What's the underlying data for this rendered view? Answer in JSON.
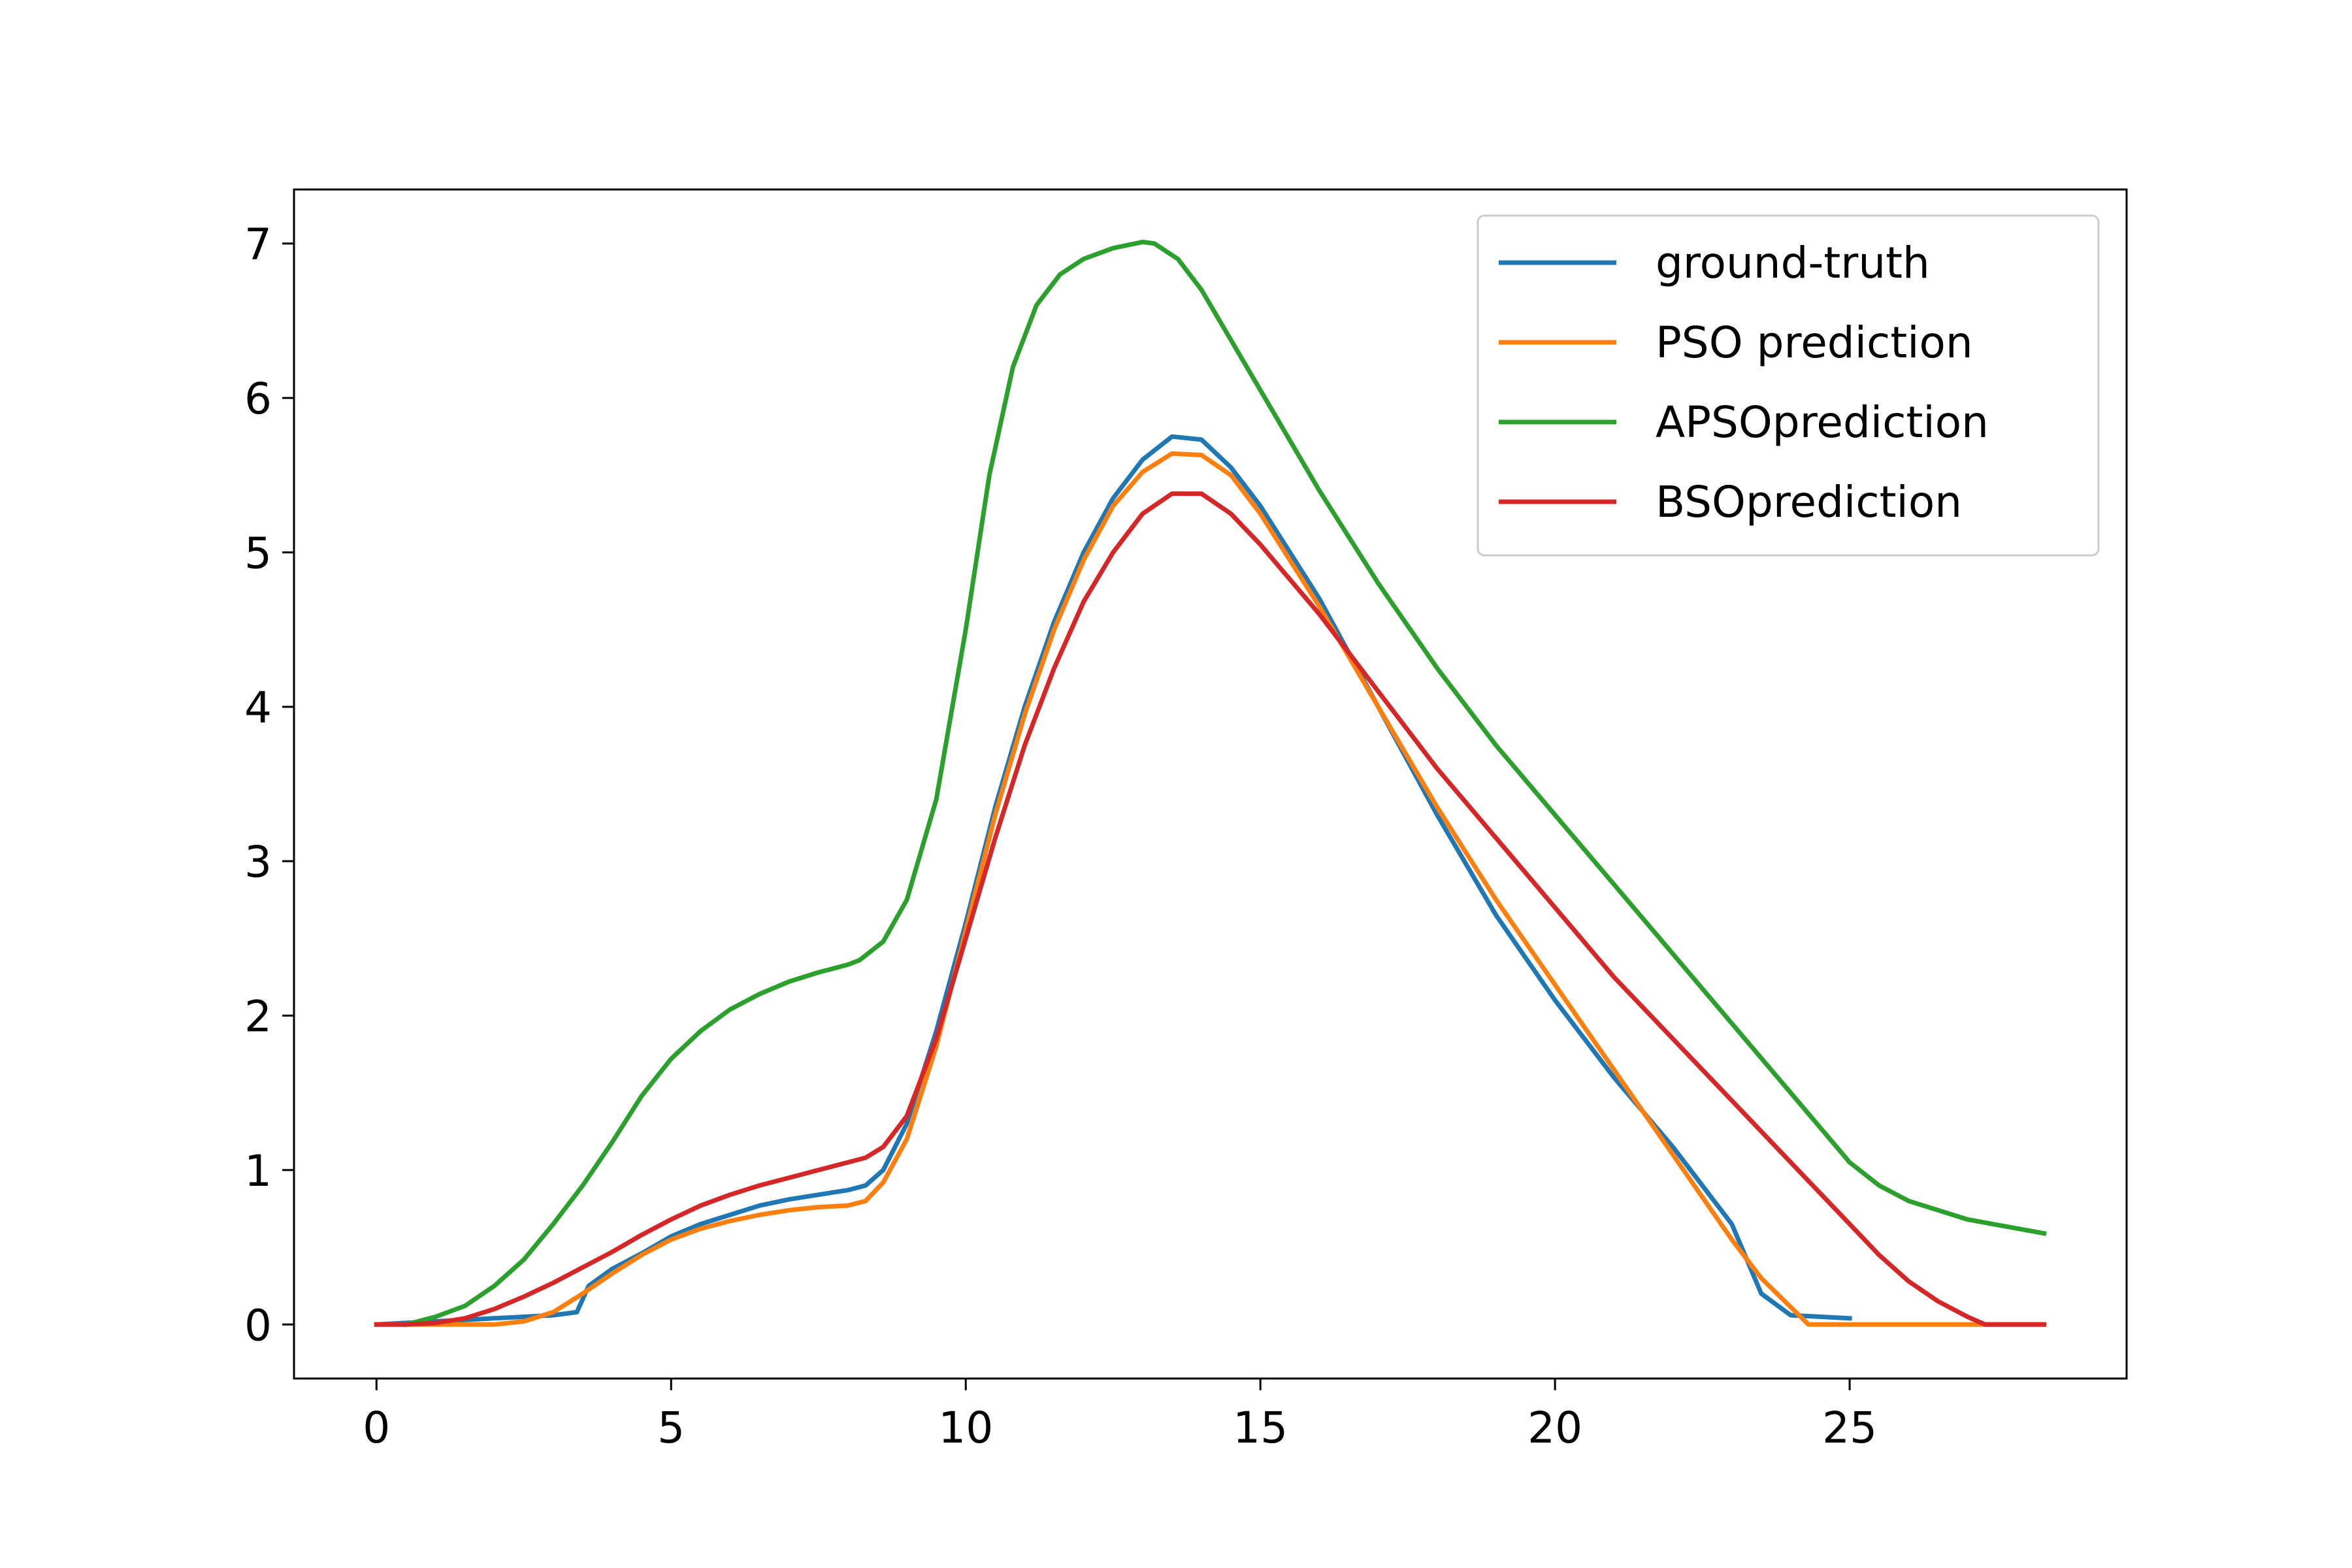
{
  "chart_data": {
    "type": "line",
    "title": "",
    "xlabel": "",
    "ylabel": "",
    "xlim": [
      -1.4,
      29.7
    ],
    "ylim": [
      -0.35,
      7.35
    ],
    "xticks": [
      0,
      5,
      10,
      15,
      20,
      25
    ],
    "yticks": [
      0,
      1,
      2,
      3,
      4,
      5,
      6,
      7
    ],
    "grid": false,
    "legend_position": "top-right",
    "series": [
      {
        "name": "ground-truth",
        "color": "#1f77b4",
        "points": [
          [
            0,
            0
          ],
          [
            0.5,
            0.01
          ],
          [
            1,
            0.02
          ],
          [
            1.5,
            0.03
          ],
          [
            2,
            0.04
          ],
          [
            2.5,
            0.05
          ],
          [
            3,
            0.06
          ],
          [
            3.4,
            0.08
          ],
          [
            3.6,
            0.25
          ],
          [
            4,
            0.36
          ],
          [
            4.5,
            0.46
          ],
          [
            5,
            0.57
          ],
          [
            5.5,
            0.65
          ],
          [
            6,
            0.71
          ],
          [
            6.5,
            0.77
          ],
          [
            7,
            0.81
          ],
          [
            7.5,
            0.84
          ],
          [
            8,
            0.87
          ],
          [
            8.3,
            0.9
          ],
          [
            8.6,
            1.0
          ],
          [
            9,
            1.3
          ],
          [
            9.5,
            1.9
          ],
          [
            10,
            2.6
          ],
          [
            10.5,
            3.35
          ],
          [
            11,
            4.0
          ],
          [
            11.5,
            4.55
          ],
          [
            12,
            5.0
          ],
          [
            12.5,
            5.35
          ],
          [
            13,
            5.6
          ],
          [
            13.5,
            5.75
          ],
          [
            14,
            5.73
          ],
          [
            14.5,
            5.55
          ],
          [
            15,
            5.3
          ],
          [
            16,
            4.7
          ],
          [
            17,
            4.0
          ],
          [
            18,
            3.3
          ],
          [
            19,
            2.65
          ],
          [
            20,
            2.1
          ],
          [
            21,
            1.6
          ],
          [
            22,
            1.15
          ],
          [
            23,
            0.65
          ],
          [
            23.5,
            0.2
          ],
          [
            24,
            0.06
          ],
          [
            25,
            0.04
          ]
        ]
      },
      {
        "name": "PSO prediction",
        "color": "#ff7f0e",
        "points": [
          [
            0,
            0
          ],
          [
            1,
            0
          ],
          [
            2,
            0
          ],
          [
            2.5,
            0.02
          ],
          [
            3,
            0.08
          ],
          [
            3.5,
            0.2
          ],
          [
            4,
            0.33
          ],
          [
            4.5,
            0.45
          ],
          [
            5,
            0.55
          ],
          [
            5.5,
            0.62
          ],
          [
            6,
            0.67
          ],
          [
            6.5,
            0.71
          ],
          [
            7,
            0.74
          ],
          [
            7.5,
            0.76
          ],
          [
            8,
            0.77
          ],
          [
            8.3,
            0.8
          ],
          [
            8.6,
            0.92
          ],
          [
            9,
            1.2
          ],
          [
            9.5,
            1.8
          ],
          [
            10,
            2.55
          ],
          [
            10.5,
            3.3
          ],
          [
            11,
            3.95
          ],
          [
            11.5,
            4.5
          ],
          [
            12,
            4.95
          ],
          [
            12.5,
            5.3
          ],
          [
            13,
            5.52
          ],
          [
            13.5,
            5.64
          ],
          [
            14,
            5.63
          ],
          [
            14.5,
            5.5
          ],
          [
            15,
            5.25
          ],
          [
            16,
            4.65
          ],
          [
            17,
            4.0
          ],
          [
            18,
            3.35
          ],
          [
            19,
            2.75
          ],
          [
            20,
            2.2
          ],
          [
            21,
            1.65
          ],
          [
            22,
            1.1
          ],
          [
            23,
            0.55
          ],
          [
            23.5,
            0.3
          ],
          [
            24.3,
            0
          ],
          [
            25,
            0
          ],
          [
            26,
            0
          ],
          [
            27,
            0
          ],
          [
            28.3,
            0
          ]
        ]
      },
      {
        "name": "APSOprediction",
        "color": "#2ca02c",
        "points": [
          [
            0.5,
            0
          ],
          [
            1,
            0.05
          ],
          [
            1.5,
            0.12
          ],
          [
            2,
            0.25
          ],
          [
            2.5,
            0.42
          ],
          [
            3,
            0.65
          ],
          [
            3.5,
            0.9
          ],
          [
            4,
            1.18
          ],
          [
            4.5,
            1.48
          ],
          [
            5,
            1.72
          ],
          [
            5.5,
            1.9
          ],
          [
            6,
            2.04
          ],
          [
            6.5,
            2.14
          ],
          [
            7,
            2.22
          ],
          [
            7.5,
            2.28
          ],
          [
            8,
            2.33
          ],
          [
            8.2,
            2.36
          ],
          [
            8.6,
            2.48
          ],
          [
            9,
            2.75
          ],
          [
            9.5,
            3.4
          ],
          [
            10,
            4.5
          ],
          [
            10.4,
            5.5
          ],
          [
            10.8,
            6.2
          ],
          [
            11.2,
            6.6
          ],
          [
            11.6,
            6.8
          ],
          [
            12,
            6.9
          ],
          [
            12.5,
            6.97
          ],
          [
            13,
            7.01
          ],
          [
            13.2,
            7.0
          ],
          [
            13.6,
            6.9
          ],
          [
            14,
            6.7
          ],
          [
            15,
            6.05
          ],
          [
            16,
            5.4
          ],
          [
            17,
            4.8
          ],
          [
            18,
            4.25
          ],
          [
            19,
            3.75
          ],
          [
            20,
            3.3
          ],
          [
            21,
            2.85
          ],
          [
            22,
            2.4
          ],
          [
            23,
            1.95
          ],
          [
            24,
            1.5
          ],
          [
            25,
            1.05
          ],
          [
            25.5,
            0.9
          ],
          [
            26,
            0.8
          ],
          [
            27,
            0.68
          ],
          [
            28.3,
            0.59
          ]
        ]
      },
      {
        "name": "BSOprediction",
        "color": "#d62728",
        "points": [
          [
            0,
            0
          ],
          [
            0.5,
            0
          ],
          [
            1,
            0.01
          ],
          [
            1.5,
            0.04
          ],
          [
            2,
            0.1
          ],
          [
            2.5,
            0.18
          ],
          [
            3,
            0.27
          ],
          [
            3.5,
            0.37
          ],
          [
            4,
            0.47
          ],
          [
            4.5,
            0.58
          ],
          [
            5,
            0.68
          ],
          [
            5.5,
            0.77
          ],
          [
            6,
            0.84
          ],
          [
            6.5,
            0.9
          ],
          [
            7,
            0.95
          ],
          [
            7.5,
            1.0
          ],
          [
            8,
            1.05
          ],
          [
            8.3,
            1.08
          ],
          [
            8.6,
            1.15
          ],
          [
            9,
            1.35
          ],
          [
            9.5,
            1.85
          ],
          [
            10,
            2.5
          ],
          [
            10.5,
            3.15
          ],
          [
            11,
            3.75
          ],
          [
            11.5,
            4.25
          ],
          [
            12,
            4.68
          ],
          [
            12.5,
            5.0
          ],
          [
            13,
            5.25
          ],
          [
            13.5,
            5.38
          ],
          [
            14,
            5.38
          ],
          [
            14.5,
            5.25
          ],
          [
            15,
            5.05
          ],
          [
            16,
            4.6
          ],
          [
            17,
            4.1
          ],
          [
            18,
            3.6
          ],
          [
            19,
            3.15
          ],
          [
            20,
            2.7
          ],
          [
            21,
            2.25
          ],
          [
            22,
            1.85
          ],
          [
            23,
            1.45
          ],
          [
            24,
            1.05
          ],
          [
            25,
            0.65
          ],
          [
            25.5,
            0.45
          ],
          [
            26,
            0.28
          ],
          [
            26.5,
            0.15
          ],
          [
            27,
            0.05
          ],
          [
            27.3,
            0
          ],
          [
            28.3,
            0
          ]
        ]
      }
    ]
  }
}
